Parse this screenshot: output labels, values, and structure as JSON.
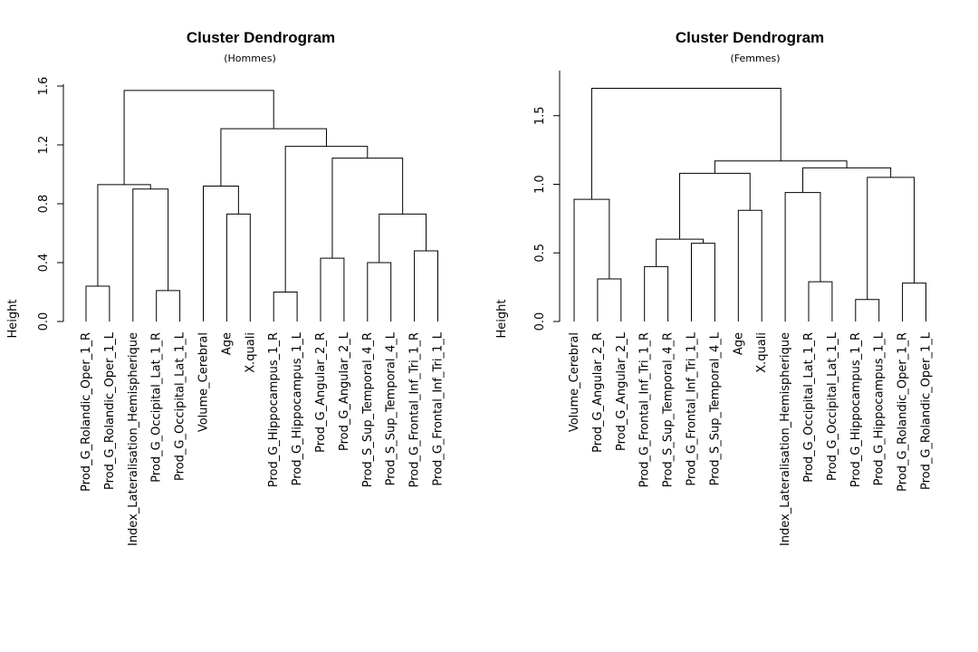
{
  "chart_data": [
    {
      "type": "dendrogram",
      "title": "Cluster Dendrogram",
      "subtitle": "(Hommes)",
      "ylabel": "Height",
      "ylim": [
        0,
        1.6
      ],
      "yticks": [
        0.0,
        0.4,
        0.8,
        1.2,
        1.6
      ],
      "ytick_labels": [
        "0.0",
        "0.4",
        "0.8",
        "1.2",
        "1.6"
      ],
      "leaves": [
        "Prod_G_Rolandic_Oper_1_R",
        "Prod_G_Rolandic_Oper_1_L",
        "Index_Lateralisation_Hemispherique",
        "Prod_G_Occipital_Lat_1_R",
        "Prod_G_Occipital_Lat_1_L",
        "Volume_Cerebral",
        "Age",
        "X.quali",
        "Prod_G_Hippocampus_1_R",
        "Prod_G_Hippocampus_1_L",
        "Prod_G_Angular_2_R",
        "Prod_G_Angular_2_L",
        "Prod_S_Sup_Temporal_4_R",
        "Prod_S_Sup_Temporal_4_L",
        "Prod_G_Frontal_Inf_Tri_1_R",
        "Prod_G_Frontal_Inf_Tri_1_L"
      ],
      "merges": [
        [
          -1,
          -2,
          0.24
        ],
        [
          -4,
          -5,
          0.21
        ],
        [
          -9,
          -10,
          0.2
        ],
        [
          -11,
          -12,
          0.43
        ],
        [
          -13,
          -14,
          0.4
        ],
        [
          -15,
          -16,
          0.48
        ],
        [
          -3,
          2,
          0.9
        ],
        [
          1,
          7,
          0.93
        ],
        [
          -7,
          -8,
          0.73
        ],
        [
          -6,
          9,
          0.92
        ],
        [
          5,
          6,
          0.73
        ],
        [
          4,
          11,
          1.11
        ],
        [
          3,
          12,
          1.19
        ],
        [
          10,
          13,
          1.31
        ],
        [
          8,
          14,
          1.57
        ]
      ]
    },
    {
      "type": "dendrogram",
      "title": "Cluster Dendrogram",
      "subtitle": "(Femmes)",
      "ylabel": "Height",
      "ylim": [
        0,
        1.7
      ],
      "yticks": [
        0.0,
        0.5,
        1.0,
        1.5
      ],
      "ytick_labels": [
        "0.0",
        "0.5",
        "1.0",
        "1.5"
      ],
      "leaves": [
        "Volume_Cerebral",
        "Prod_G_Angular_2_R",
        "Prod_G_Angular_2_L",
        "Prod_G_Frontal_Inf_Tri_1_R",
        "Prod_S_Sup_Temporal_4_R",
        "Prod_G_Frontal_Inf_Tri_1_L",
        "Prod_S_Sup_Temporal_4_L",
        "Age",
        "X.quali",
        "Index_Lateralisation_Hemispherique",
        "Prod_G_Occipital_Lat_1_R",
        "Prod_G_Occipital_Lat_1_L",
        "Prod_G_Hippocampus_1_R",
        "Prod_G_Hippocampus_1_L",
        "Prod_G_Rolandic_Oper_1_R",
        "Prod_G_Rolandic_Oper_1_L"
      ],
      "merges": [
        [
          -2,
          -3,
          0.31
        ],
        [
          -4,
          -5,
          0.4
        ],
        [
          -6,
          -7,
          0.57
        ],
        [
          -11,
          -12,
          0.29
        ],
        [
          -13,
          -14,
          0.16
        ],
        [
          -15,
          -16,
          0.28
        ],
        [
          2,
          3,
          0.6
        ],
        [
          -8,
          -9,
          0.81
        ],
        [
          -10,
          4,
          0.94
        ],
        [
          5,
          6,
          1.05
        ],
        [
          -1,
          1,
          0.89
        ],
        [
          7,
          8,
          1.08
        ],
        [
          9,
          10,
          1.12
        ],
        [
          12,
          13,
          1.17
        ],
        [
          11,
          14,
          1.7
        ]
      ]
    }
  ]
}
